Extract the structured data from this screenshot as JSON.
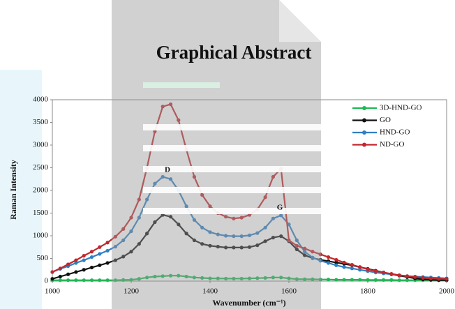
{
  "chart_data": {
    "type": "line",
    "title": "Graphical Abstract",
    "x_label": "Wavenumber (cm⁻¹)",
    "y_label": "Raman Intensity",
    "annotations": [
      "D",
      "G"
    ],
    "xlim": [
      1000,
      2000
    ],
    "xticks": [
      1000,
      1200,
      1400,
      1600,
      1800,
      2000
    ],
    "ylim": [
      0,
      4000
    ],
    "yticks": [
      0,
      500,
      1000,
      1500,
      2000,
      2500,
      3000,
      3500,
      4000
    ],
    "grid": false,
    "legend": "top-right",
    "x": [
      1000,
      1020,
      1040,
      1060,
      1080,
      1100,
      1120,
      1140,
      1160,
      1180,
      1200,
      1220,
      1240,
      1260,
      1280,
      1300,
      1320,
      1340,
      1360,
      1380,
      1400,
      1420,
      1440,
      1460,
      1480,
      1500,
      1520,
      1540,
      1560,
      1580,
      1600,
      1620,
      1640,
      1660,
      1680,
      1700,
      1720,
      1740,
      1760,
      1780,
      1800,
      1820,
      1840,
      1860,
      1880,
      1900,
      1920,
      1940,
      1960,
      1980,
      2000
    ],
    "series": [
      {
        "name": "3D-HND-GO",
        "color": "#1db954",
        "values": [
          20,
          20,
          20,
          20,
          20,
          20,
          20,
          20,
          20,
          25,
          30,
          50,
          80,
          100,
          110,
          120,
          120,
          100,
          80,
          70,
          60,
          60,
          55,
          55,
          55,
          60,
          65,
          70,
          80,
          80,
          60,
          45,
          40,
          40,
          35,
          35,
          30,
          30,
          30,
          30,
          25,
          25,
          25,
          25,
          20,
          20,
          20,
          20,
          20,
          20,
          20
        ]
      },
      {
        "name": "GO",
        "color": "#111111",
        "values": [
          50,
          100,
          150,
          200,
          250,
          300,
          350,
          400,
          460,
          540,
          650,
          820,
          1050,
          1300,
          1460,
          1420,
          1250,
          1050,
          900,
          820,
          780,
          760,
          740,
          740,
          740,
          750,
          790,
          880,
          960,
          990,
          880,
          700,
          570,
          510,
          470,
          440,
          410,
          380,
          350,
          310,
          270,
          230,
          190,
          150,
          120,
          90,
          60,
          40,
          30,
          20,
          20
        ]
      },
      {
        "name": "HND-GO",
        "color": "#2f7fc4",
        "values": [
          200,
          270,
          330,
          400,
          460,
          530,
          600,
          670,
          760,
          900,
          1100,
          1400,
          1800,
          2150,
          2300,
          2250,
          2000,
          1650,
          1350,
          1180,
          1080,
          1030,
          1000,
          990,
          990,
          1010,
          1060,
          1180,
          1380,
          1450,
          1250,
          900,
          650,
          520,
          450,
          400,
          350,
          310,
          280,
          250,
          220,
          190,
          170,
          150,
          130,
          110,
          100,
          90,
          80,
          70,
          60
        ]
      },
      {
        "name": "ND-GO",
        "color": "#c0282d",
        "values": [
          200,
          280,
          370,
          460,
          560,
          650,
          750,
          850,
          980,
          1150,
          1400,
          1800,
          2500,
          3300,
          3850,
          3900,
          3550,
          2900,
          2300,
          1900,
          1650,
          1500,
          1420,
          1380,
          1400,
          1460,
          1580,
          1850,
          2300,
          2480,
          900,
          780,
          720,
          650,
          590,
          530,
          470,
          410,
          360,
          310,
          260,
          220,
          190,
          160,
          130,
          110,
          90,
          70,
          60,
          50,
          50
        ]
      }
    ]
  }
}
